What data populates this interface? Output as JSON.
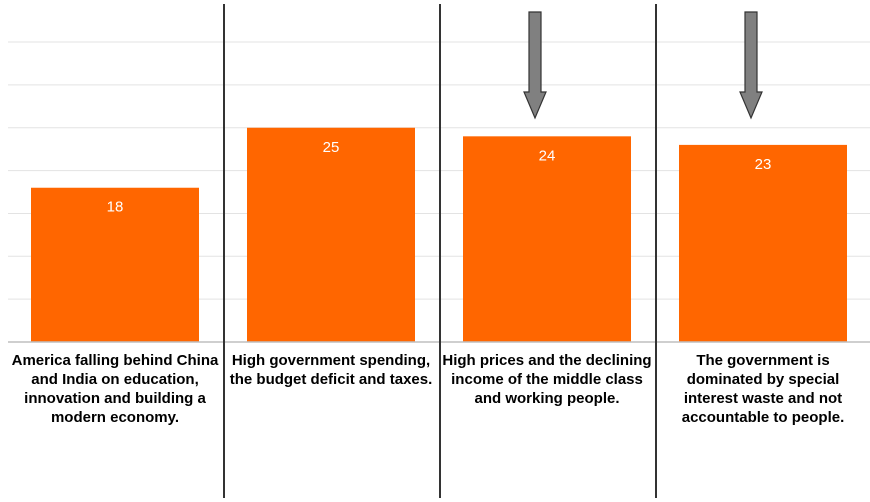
{
  "chart_data": {
    "type": "bar",
    "categories": [
      "America falling behind China and India on education, innovation and building a modern economy.",
      "High government spending, the budget deficit and taxes.",
      "High prices and the declining income of the middle class and working people.",
      "The government is dominated by special interest waste and not accountable to people."
    ],
    "values": [
      18,
      25,
      24,
      23
    ],
    "data_labels": [
      "18",
      "25",
      "24",
      "23"
    ],
    "highlighted": [
      false,
      false,
      true,
      true
    ],
    "ylim": [
      0,
      35
    ],
    "grid": true,
    "title": "",
    "xlabel": "",
    "ylabel": "",
    "colors": {
      "bar": "#ff6600",
      "arrow": "#808080",
      "divider": "#333333",
      "grid": "#e3e3e3"
    }
  }
}
